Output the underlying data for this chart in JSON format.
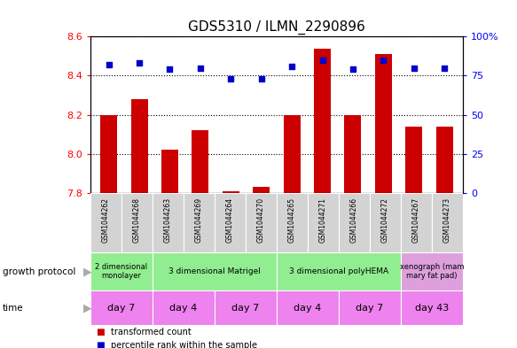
{
  "title": "GDS5310 / ILMN_2290896",
  "samples": [
    "GSM1044262",
    "GSM1044268",
    "GSM1044263",
    "GSM1044269",
    "GSM1044264",
    "GSM1044270",
    "GSM1044265",
    "GSM1044271",
    "GSM1044266",
    "GSM1044272",
    "GSM1044267",
    "GSM1044273"
  ],
  "bar_values": [
    8.2,
    8.28,
    8.02,
    8.12,
    7.81,
    7.83,
    8.2,
    8.54,
    8.2,
    8.51,
    8.14,
    8.14
  ],
  "dot_values": [
    82,
    83,
    79,
    80,
    73,
    73,
    81,
    85,
    79,
    85,
    80,
    80
  ],
  "ymin": 7.8,
  "ymax": 8.6,
  "y2min": 0,
  "y2max": 100,
  "yticks": [
    7.8,
    8.0,
    8.2,
    8.4,
    8.6
  ],
  "y2ticks": [
    0,
    25,
    50,
    75,
    100
  ],
  "bar_color": "#cc0000",
  "dot_color": "#0000cc",
  "bar_bottom": 7.8,
  "growth_protocol_groups": [
    {
      "label": "2 dimensional\nmonolayer",
      "start": 0,
      "end": 2,
      "color": "#90ee90"
    },
    {
      "label": "3 dimensional Matrigel",
      "start": 2,
      "end": 6,
      "color": "#90ee90"
    },
    {
      "label": "3 dimensional polyHEMA",
      "start": 6,
      "end": 10,
      "color": "#90ee90"
    },
    {
      "label": "xenograph (mam\nmary fat pad)",
      "start": 10,
      "end": 12,
      "color": "#dda0dd"
    }
  ],
  "time_groups": [
    {
      "label": "day 7",
      "start": 0,
      "end": 2,
      "color": "#ee82ee"
    },
    {
      "label": "day 4",
      "start": 2,
      "end": 4,
      "color": "#ee82ee"
    },
    {
      "label": "day 7",
      "start": 4,
      "end": 6,
      "color": "#ee82ee"
    },
    {
      "label": "day 4",
      "start": 6,
      "end": 8,
      "color": "#ee82ee"
    },
    {
      "label": "day 7",
      "start": 8,
      "end": 10,
      "color": "#ee82ee"
    },
    {
      "label": "day 43",
      "start": 10,
      "end": 12,
      "color": "#ee82ee"
    }
  ],
  "legend_items": [
    {
      "color": "#cc0000",
      "label": "transformed count"
    },
    {
      "color": "#0000cc",
      "label": "percentile rank within the sample"
    }
  ],
  "sample_bg_color": "#d3d3d3",
  "arrow_color": "#aaaaaa",
  "left_label_gp": "growth protocol",
  "left_label_time": "time"
}
